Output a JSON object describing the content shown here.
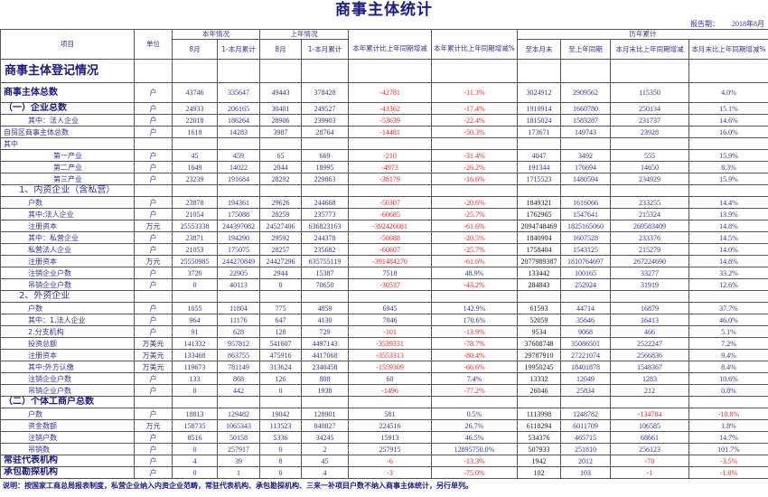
{
  "title": "商事主体统计",
  "report_period_label": "报告期：",
  "report_period": "2018年8月",
  "headers": {
    "item": "项目",
    "unit": "单位",
    "this_year": "本年情况",
    "last_year": "上年情况",
    "historical": "历年累计",
    "month": "8月",
    "ytd": "1-本月累计",
    "ytd_change": "本年累计比上年同期增减",
    "ytd_change_pct": "本年累计比上年同期增减%",
    "to_month_end": "至本月末",
    "to_last_year": "至上年同期",
    "month_end_change": "本月末比上年同期增减",
    "month_end_change_pct": "本月末比上年同期增减%"
  },
  "rows": [
    {
      "style": "section",
      "label": "商事主体登记情况",
      "unit": "",
      "values": [
        "",
        "",
        "",
        "",
        "",
        "",
        "",
        "",
        "",
        ""
      ]
    },
    {
      "style": "total",
      "label": "商事主体总数",
      "unit": "户",
      "values": [
        "43746",
        "335647",
        "49443",
        "378428",
        "-42781",
        "-11.3%",
        "3024912",
        "2909562",
        "115350",
        "4.0%"
      ]
    },
    {
      "style": "major",
      "label": "（一）企业总数",
      "unit": "户",
      "values": [
        "24933",
        "206165",
        "30401",
        "249527",
        "-43362",
        "-17.4%",
        "1910914",
        "1660780",
        "250134",
        "15.1%"
      ]
    },
    {
      "style": "sub1",
      "label": "其中：法人企业",
      "unit": "户",
      "values": [
        "22018",
        "186264",
        "28906",
        "239903",
        "-53639",
        "-22.4%",
        "1815024",
        "1583287",
        "231737",
        "14.6%"
      ]
    },
    {
      "style": "plain",
      "label": "自贸区商事主体总数",
      "unit": "户",
      "values": [
        "1618",
        "14283",
        "3987",
        "28764",
        "-14481",
        "-50.3%",
        "173671",
        "149743",
        "23928",
        "16.0%"
      ]
    },
    {
      "style": "plain",
      "label": "其中",
      "unit": "",
      "values": [
        "",
        "",
        "",
        "",
        "",
        "",
        "",
        "",
        "",
        ""
      ]
    },
    {
      "style": "sub2",
      "label": "第一产业",
      "unit": "户",
      "values": [
        "45",
        "459",
        "65",
        "669",
        "-210",
        "-31.4%",
        "4047",
        "3492",
        "555",
        "15.9%"
      ]
    },
    {
      "style": "sub2",
      "label": "第二产业",
      "unit": "户",
      "values": [
        "1649",
        "14022",
        "2044",
        "18995",
        "-4973",
        "-26.2%",
        "191344",
        "176694",
        "14650",
        "8.3%"
      ]
    },
    {
      "style": "sub2",
      "label": "第三产业",
      "unit": "户",
      "values": [
        "23239",
        "191684",
        "28292",
        "229863",
        "-38179",
        "-16.6%",
        "1715523",
        "1480594",
        "234929",
        "15.9%"
      ]
    },
    {
      "style": "group",
      "label": "1、内资企业（含私营）",
      "unit": "",
      "values": [
        "",
        "",
        "",
        "",
        "",
        "",
        "",
        "",
        "",
        ""
      ]
    },
    {
      "style": "sub3",
      "label": "户数",
      "unit": "户",
      "values": [
        "23878",
        "194361",
        "29626",
        "244668",
        "-50307",
        "-20.6%",
        "1849321",
        "1616066",
        "233255",
        "14.4%"
      ]
    },
    {
      "style": "sub3",
      "label": "其中:法人企业",
      "unit": "户",
      "values": [
        "21054",
        "175088",
        "28259",
        "235773",
        "-60685",
        "-25.7%",
        "1762965",
        "1547641",
        "215324",
        "13.9%"
      ]
    },
    {
      "style": "sub3",
      "label": "注册资本",
      "unit": "万元",
      "values": [
        "25553338",
        "244397082",
        "24527406",
        "636823163",
        "-392426081",
        "-61.6%",
        "2094748469",
        "1825165060",
        "269583409",
        "14.8%"
      ]
    },
    {
      "style": "sub3",
      "label": "其中：私营企业",
      "unit": "户",
      "values": [
        "23871",
        "194290",
        "29592",
        "244378",
        "-50088",
        "-20.5%",
        "1840904",
        "1607528",
        "233376",
        "14.5%"
      ]
    },
    {
      "style": "sub3",
      "label": "私营法人企业",
      "unit": "户",
      "values": [
        "21053",
        "175075",
        "28257",
        "235682",
        "-60607",
        "-25.7%",
        "1758404",
        "1543125",
        "215279",
        "14.0%"
      ]
    },
    {
      "style": "sub3",
      "label": "注册资本",
      "unit": "万元",
      "values": [
        "25550985",
        "244270849",
        "24427296",
        "635755119",
        "-391484270",
        "-61.6%",
        "2077989387",
        "1810764697",
        "267224690",
        "14.8%"
      ]
    },
    {
      "style": "sub3",
      "label": "注销企业户数",
      "unit": "户",
      "values": [
        "3720",
        "22905",
        "2944",
        "15387",
        "7518",
        "48.9%",
        "133442",
        "100165",
        "33277",
        "33.2%"
      ]
    },
    {
      "style": "sub3",
      "label": "吊销企业户数",
      "unit": "户",
      "values": [
        "0",
        "40113",
        "0",
        "70650",
        "-30537",
        "-43.2%",
        "284843",
        "252924",
        "31919",
        "12.6%"
      ]
    },
    {
      "style": "group",
      "label": "2、外资企业",
      "unit": "",
      "values": [
        "",
        "",
        "",
        "",
        "",
        "",
        "",
        "",
        "",
        ""
      ]
    },
    {
      "style": "sub3",
      "label": "户数",
      "unit": "户",
      "values": [
        "1055",
        "11804",
        "775",
        "4859",
        "6945",
        "142.9%",
        "61593",
        "44714",
        "16879",
        "37.7%"
      ]
    },
    {
      "style": "sub3",
      "label": "其中：1.法人企业",
      "unit": "户",
      "values": [
        "964",
        "11176",
        "647",
        "4130",
        "7046",
        "170.6%",
        "52059",
        "35646",
        "16413",
        "46.0%"
      ]
    },
    {
      "style": "sub3",
      "label": "2.分支机构",
      "unit": "户",
      "values": [
        "91",
        "628",
        "128",
        "729",
        "-101",
        "-13.9%",
        "9534",
        "9068",
        "466",
        "5.1%"
      ]
    },
    {
      "style": "sub3",
      "label": "投资总额",
      "unit": "万美元",
      "values": [
        "141332",
        "957812",
        "541607",
        "4497143",
        "-3539331",
        "-78.7%",
        "37608748",
        "35086501",
        "2522247",
        "7.2%"
      ]
    },
    {
      "style": "sub3",
      "label": "注册资本",
      "unit": "万美元",
      "values": [
        "133468",
        "863755",
        "475916",
        "4417068",
        "-3553313",
        "-80.4%",
        "29787910",
        "27221074",
        "2566836",
        "9.4%"
      ]
    },
    {
      "style": "sub3",
      "label": "其中:外方认缴",
      "unit": "万美元",
      "values": [
        "119673",
        "781149",
        "313624",
        "2340458",
        "-1559309",
        "-66.6%",
        "19950245",
        "18401878",
        "1548367",
        "8.4%"
      ]
    },
    {
      "style": "sub3",
      "label": "注销企业户数",
      "unit": "户",
      "values": [
        "133",
        "868",
        "126",
        "808",
        "60",
        "7.4%",
        "13332",
        "12049",
        "1283",
        "10.6%"
      ]
    },
    {
      "style": "sub3",
      "label": "吊销企业户数",
      "unit": "户",
      "values": [
        "0",
        "442",
        "0",
        "1938",
        "-1496",
        "-77.2%",
        "26046",
        "25834",
        "212",
        "0.8%"
      ]
    },
    {
      "style": "major",
      "label": "（二）个体工商户总数",
      "unit": "",
      "values": [
        "",
        "",
        "",
        "",
        "",
        "",
        "",
        "",
        "",
        ""
      ]
    },
    {
      "style": "sub3",
      "label": "户数",
      "unit": "户",
      "values": [
        "18813",
        "129482",
        "19042",
        "128901",
        "581",
        "0.5%",
        "1113998",
        "1248782",
        "-134784",
        "-10.8%"
      ]
    },
    {
      "style": "sub3",
      "label": "资金数额",
      "unit": "万元",
      "values": [
        "158735",
        "1065343",
        "113523",
        "840827",
        "224516",
        "26.7%",
        "6118294",
        "6011709",
        "106585",
        "1.8%"
      ]
    },
    {
      "style": "sub3",
      "label": "注销户数",
      "unit": "户",
      "values": [
        "8516",
        "50158",
        "5336",
        "34245",
        "15913",
        "46.5%",
        "534376",
        "465715",
        "68661",
        "14.7%"
      ]
    },
    {
      "style": "sub3",
      "label": "吊销数",
      "unit": "户",
      "values": [
        "0",
        "257917",
        "0",
        "2",
        "257915",
        "12895750.0%",
        "507933",
        "251810",
        "256123",
        "101.7%"
      ]
    },
    {
      "style": "major",
      "label": "常驻代表机构",
      "unit": "户",
      "values": [
        "4",
        "39",
        "8",
        "45",
        "-6",
        "-13.3%",
        "1942",
        "2012",
        "-70",
        "-3.5%"
      ]
    },
    {
      "style": "major",
      "label": "承包勘探机构",
      "unit": "户",
      "values": [
        "0",
        "1",
        "0",
        "4",
        "-3",
        "-75.0%",
        "102",
        "103",
        "-1",
        "-1.0%"
      ]
    }
  ],
  "note": "说明：按国家工商总局报表制度，私营企业纳入内资企业范畴，常驻代表机构、承包勘探机构、三来一补项目户数不纳入商事主体统计，另行单列。",
  "colors": {
    "text": "#333399",
    "negative": "#ff2020",
    "border": "#555555"
  }
}
